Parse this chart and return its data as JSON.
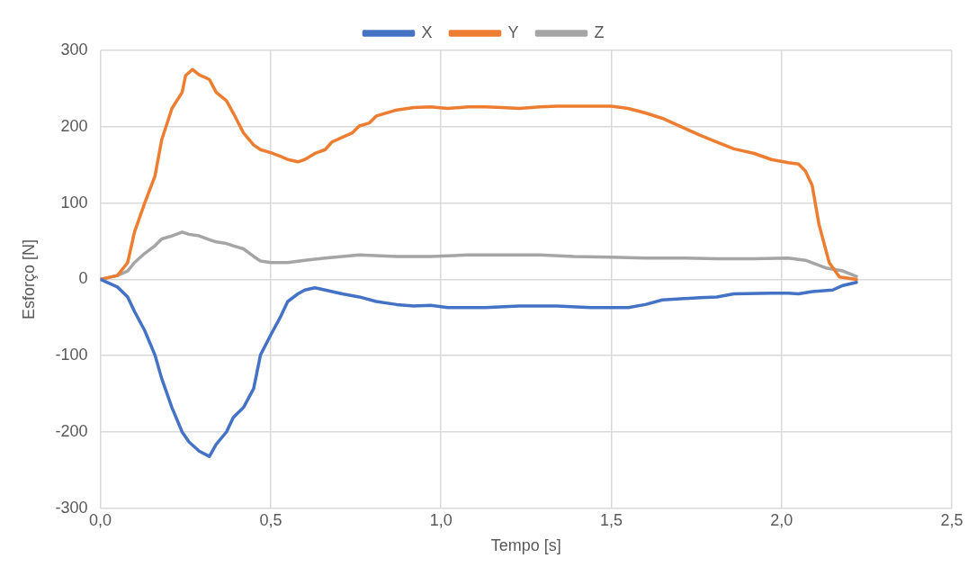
{
  "chart_data": {
    "type": "line",
    "xlabel": "Tempo [s]",
    "ylabel": "Esforço [N]",
    "xlim": [
      0,
      2.5
    ],
    "ylim": [
      -300,
      300
    ],
    "xticks": [
      {
        "value": 0,
        "label": "0,0"
      },
      {
        "value": 0.5,
        "label": "0,5"
      },
      {
        "value": 1,
        "label": "1,0"
      },
      {
        "value": 1.5,
        "label": "1,5"
      },
      {
        "value": 2,
        "label": "2,0"
      },
      {
        "value": 2.5,
        "label": "2,5"
      }
    ],
    "yticks": [
      -300,
      -200,
      -100,
      0,
      100,
      200,
      300
    ],
    "grid": true,
    "legend": "top",
    "marker": "none",
    "line_style": "solid",
    "series": [
      {
        "name": "X",
        "color": "#4472c4",
        "x": [
          0,
          0.05,
          0.08,
          0.1,
          0.13,
          0.16,
          0.18,
          0.21,
          0.24,
          0.26,
          0.29,
          0.32,
          0.34,
          0.37,
          0.39,
          0.42,
          0.45,
          0.47,
          0.5,
          0.53,
          0.55,
          0.58,
          0.6,
          0.63,
          0.66,
          0.71,
          0.76,
          0.81,
          0.87,
          0.92,
          0.97,
          1.02,
          1.13,
          1.23,
          1.34,
          1.44,
          1.55,
          1.6,
          1.65,
          1.76,
          1.81,
          1.86,
          1.97,
          2.02,
          2.05,
          2.09,
          2.15,
          2.18,
          2.22
        ],
        "values": [
          0,
          -10,
          -23,
          -42,
          -67,
          -99,
          -130,
          -168,
          -200,
          -213,
          -225,
          -232,
          -216,
          -200,
          -181,
          -168,
          -143,
          -99,
          -73,
          -48,
          -29,
          -19,
          -14,
          -11,
          -14,
          -19,
          -23,
          -29,
          -33,
          -35,
          -34,
          -37,
          -37,
          -35,
          -35,
          -37,
          -37,
          -33,
          -27,
          -24,
          -23,
          -19,
          -18,
          -18,
          -19,
          -16,
          -14,
          -8,
          -4
        ]
      },
      {
        "name": "Y",
        "color": "#ed7d31",
        "x": [
          0,
          0.05,
          0.08,
          0.1,
          0.13,
          0.16,
          0.18,
          0.21,
          0.24,
          0.25,
          0.27,
          0.29,
          0.32,
          0.34,
          0.37,
          0.39,
          0.42,
          0.45,
          0.47,
          0.5,
          0.53,
          0.55,
          0.58,
          0.6,
          0.63,
          0.66,
          0.68,
          0.71,
          0.74,
          0.76,
          0.79,
          0.81,
          0.87,
          0.92,
          0.97,
          1.02,
          1.08,
          1.13,
          1.18,
          1.23,
          1.29,
          1.34,
          1.39,
          1.44,
          1.5,
          1.55,
          1.6,
          1.65,
          1.71,
          1.76,
          1.81,
          1.86,
          1.92,
          1.97,
          2.02,
          2.05,
          2.07,
          2.09,
          2.11,
          2.14,
          2.17,
          2.22
        ],
        "values": [
          0,
          5,
          22,
          62,
          100,
          135,
          183,
          224,
          245,
          267,
          275,
          268,
          262,
          245,
          234,
          218,
          192,
          176,
          170,
          166,
          161,
          157,
          154,
          157,
          165,
          170,
          180,
          186,
          192,
          201,
          205,
          214,
          222,
          225,
          226,
          224,
          226,
          226,
          225,
          224,
          226,
          227,
          227,
          227,
          227,
          224,
          218,
          211,
          199,
          189,
          180,
          171,
          165,
          157,
          153,
          151,
          142,
          123,
          72,
          22,
          3,
          0
        ]
      },
      {
        "name": "Z",
        "color": "#a5a5a5",
        "x": [
          0,
          0.05,
          0.08,
          0.1,
          0.13,
          0.16,
          0.18,
          0.21,
          0.24,
          0.26,
          0.29,
          0.32,
          0.34,
          0.37,
          0.39,
          0.42,
          0.45,
          0.47,
          0.5,
          0.55,
          0.6,
          0.66,
          0.71,
          0.76,
          0.87,
          0.97,
          1.08,
          1.18,
          1.29,
          1.39,
          1.5,
          1.6,
          1.71,
          1.81,
          1.92,
          2.02,
          2.07,
          2.13,
          2.18,
          2.22
        ],
        "values": [
          0,
          5,
          11,
          22,
          34,
          44,
          53,
          57,
          62,
          59,
          57,
          52,
          49,
          47,
          44,
          40,
          30,
          24,
          22,
          22,
          25,
          28,
          30,
          32,
          30,
          30,
          32,
          32,
          32,
          30,
          29,
          28,
          28,
          27,
          27,
          28,
          25,
          15,
          11,
          4
        ]
      }
    ]
  }
}
